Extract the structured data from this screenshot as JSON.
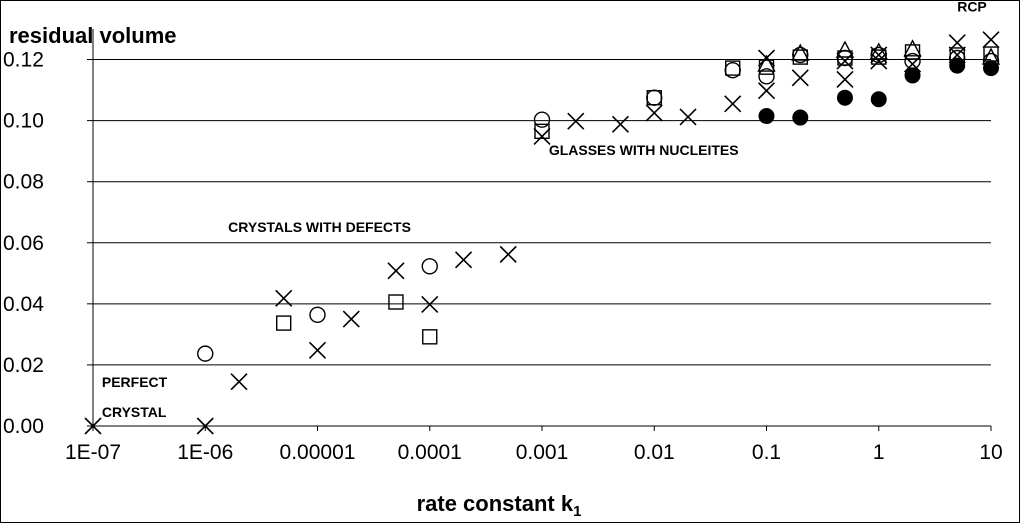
{
  "chart_data": {
    "type": "scatter",
    "title": "",
    "xlabel": "rate constant k",
    "xlabel_sub": "1",
    "ylabel": "residual volume",
    "x_scale": "log",
    "xlim": [
      1e-07,
      10
    ],
    "ylim": [
      0,
      0.13
    ],
    "grid": "horizontal",
    "x_ticks": [
      1e-07,
      1e-06,
      1e-05,
      0.0001,
      0.001,
      0.01,
      0.1,
      1,
      10
    ],
    "x_tick_labels": [
      "1E-07",
      "1E-06",
      "0.00001",
      "0.0001",
      "0.001",
      "0.01",
      "0.1",
      "1",
      "10"
    ],
    "y_ticks": [
      0,
      0.02,
      0.04,
      0.06,
      0.08,
      0.1,
      0.12
    ],
    "y_tick_labels": [
      "0.00",
      "0.02",
      "0.04",
      "0.06",
      "0.08",
      "0.10",
      "0.12"
    ],
    "series": [
      {
        "marker": "cross",
        "x": [
          1e-07,
          1e-06,
          2e-06,
          5e-06,
          1e-05,
          2e-05,
          5e-05,
          0.0001,
          0.0002,
          0.0005,
          0.001,
          0.002,
          0.005,
          0.01,
          0.02,
          0.05,
          0.1,
          0.2,
          0.5,
          1,
          2,
          5,
          10,
          0.1,
          0.5,
          1,
          5
        ],
        "y": [
          0.0,
          0.0,
          0.0145,
          0.0418,
          0.0248,
          0.035,
          0.0508,
          0.0398,
          0.0544,
          0.0562,
          0.0948,
          0.0998,
          0.0988,
          0.1025,
          0.1012,
          0.1055,
          0.1098,
          0.114,
          0.1135,
          0.1195,
          0.1185,
          0.1255,
          0.1265,
          0.1205,
          0.1195,
          0.1215,
          0.1215
        ]
      },
      {
        "marker": "circle",
        "x": [
          1e-06,
          1e-05,
          0.0001,
          0.001,
          0.01,
          0.05,
          0.1,
          0.2,
          0.5,
          1,
          2,
          5,
          10
        ],
        "y": [
          0.0237,
          0.0364,
          0.0523,
          0.1003,
          0.1075,
          0.1165,
          0.1145,
          0.1215,
          0.1205,
          0.1215,
          0.1195,
          0.1205,
          0.1195
        ]
      },
      {
        "marker": "square",
        "x": [
          5e-06,
          5e-05,
          0.0001,
          0.001,
          0.01,
          0.05,
          0.1,
          0.2,
          0.5,
          1,
          2,
          5,
          10
        ],
        "y": [
          0.0337,
          0.0406,
          0.0292,
          0.0965,
          0.1075,
          0.1172,
          0.1175,
          0.1208,
          0.1205,
          0.1208,
          0.1225,
          0.1215,
          0.1218
        ]
      },
      {
        "marker": "triangle",
        "x": [
          0.1,
          0.2,
          0.5,
          1,
          2,
          10
        ],
        "y": [
          0.1182,
          0.1218,
          0.1228,
          0.1222,
          0.1232,
          0.1205
        ]
      },
      {
        "marker": "filled-circle",
        "x": [
          0.1,
          0.2,
          0.5,
          1,
          2,
          5,
          10
        ],
        "y": [
          0.1015,
          0.101,
          0.1075,
          0.107,
          0.1148,
          0.118,
          0.1172
        ]
      }
    ],
    "annotations": [
      {
        "text": "RCP",
        "x": 5,
        "y": 0.1357
      },
      {
        "text": "GLASSES WITH NUCLEITES",
        "x": 0.00115,
        "y": 0.0888
      },
      {
        "text": "CRYSTALS WITH  DEFECTS",
        "x": 1.6e-06,
        "y": 0.0635
      },
      {
        "text": "PERFECT",
        "x": 1.2e-07,
        "y": 0.0127
      },
      {
        "text": "CRYSTAL",
        "x": 1.2e-07,
        "y": 0.003
      }
    ]
  }
}
